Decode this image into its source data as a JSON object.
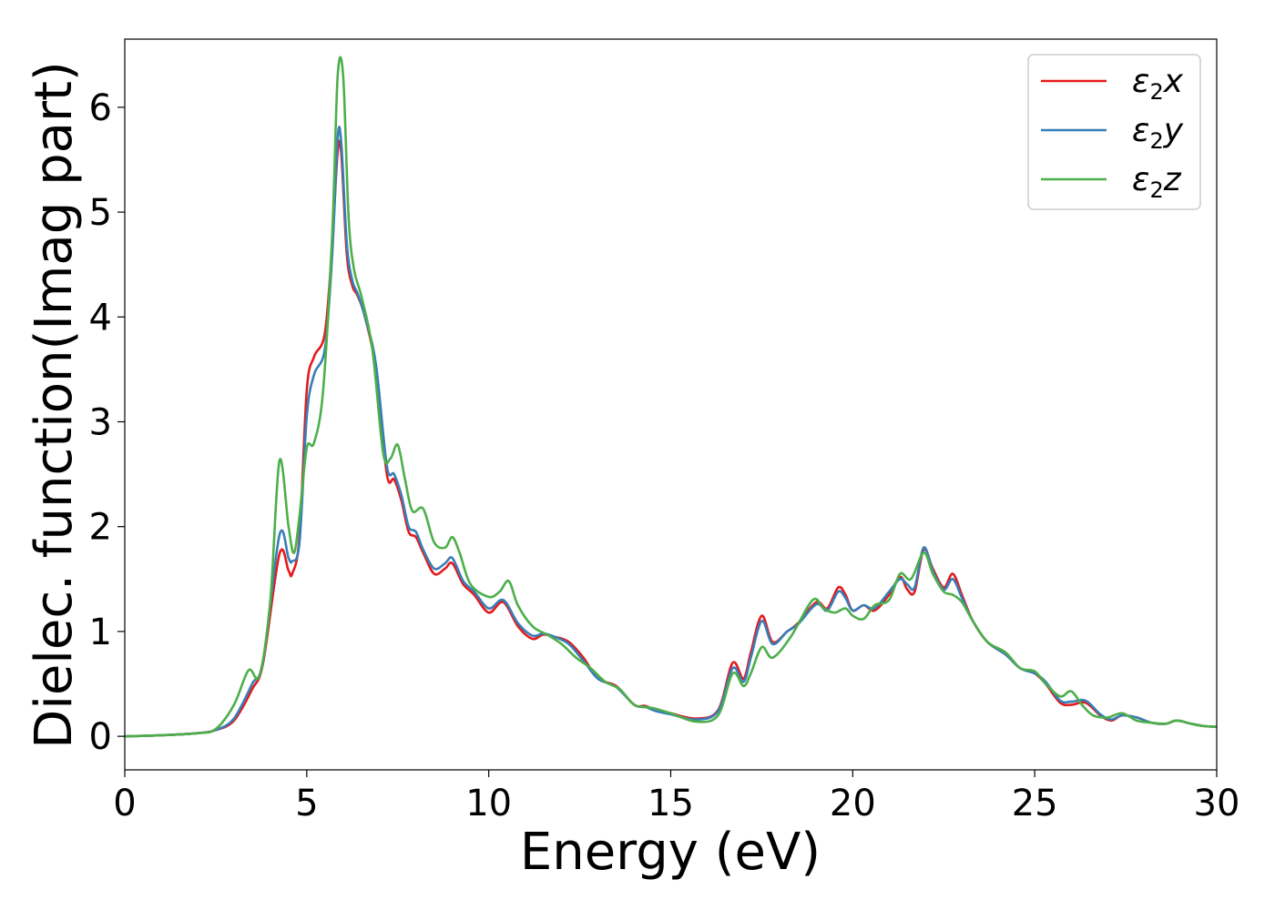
{
  "chart_data": {
    "type": "line",
    "xlabel": "Energy (eV)",
    "ylabel": "Dielec. function(Imag part)",
    "xlim": [
      0,
      30
    ],
    "ylim": [
      -0.32,
      6.65
    ],
    "xticks": [
      0,
      5,
      10,
      15,
      20,
      25,
      30
    ],
    "yticks": [
      0,
      1,
      2,
      3,
      4,
      5,
      6
    ],
    "grid": false,
    "legend_position": "top-right",
    "series": [
      {
        "name": "ε2x",
        "legend": {
          "symbol": "ε",
          "sub": "2",
          "axis": "x"
        },
        "color": "#e41a1c",
        "x": [
          0,
          1,
          2,
          2.5,
          3,
          3.5,
          3.8,
          4.25,
          4.5,
          4.6,
          4.8,
          5.0,
          5.2,
          5.5,
          5.7,
          5.85,
          5.95,
          6.1,
          6.25,
          6.4,
          6.6,
          6.9,
          7.2,
          7.4,
          7.6,
          7.8,
          8.0,
          8.2,
          8.5,
          8.8,
          9.0,
          9.3,
          9.6,
          10.0,
          10.4,
          10.8,
          11.2,
          11.5,
          11.8,
          12.2,
          12.6,
          13.0,
          13.5,
          14.0,
          14.3,
          14.6,
          15.0,
          15.7,
          16.3,
          16.7,
          17.0,
          17.2,
          17.5,
          17.8,
          18.2,
          18.5,
          19.0,
          19.3,
          19.6,
          19.8,
          20.0,
          20.3,
          20.6,
          21.0,
          21.3,
          21.5,
          21.7,
          21.95,
          22.2,
          22.5,
          22.75,
          23.0,
          23.3,
          23.7,
          24.2,
          24.6,
          25.0,
          25.3,
          25.7,
          26.0,
          26.4,
          26.8,
          27.1,
          27.4,
          27.8,
          28.2,
          28.6,
          28.9,
          29.3,
          29.6,
          30.0
        ],
        "y": [
          0.0,
          0.01,
          0.03,
          0.06,
          0.15,
          0.45,
          0.7,
          1.74,
          1.58,
          1.55,
          1.9,
          3.3,
          3.62,
          3.85,
          4.7,
          5.58,
          5.55,
          4.6,
          4.3,
          4.2,
          4.0,
          3.5,
          2.5,
          2.45,
          2.25,
          1.95,
          1.9,
          1.75,
          1.55,
          1.6,
          1.65,
          1.45,
          1.35,
          1.18,
          1.28,
          1.05,
          0.93,
          0.97,
          0.95,
          0.9,
          0.75,
          0.55,
          0.48,
          0.3,
          0.29,
          0.25,
          0.22,
          0.17,
          0.25,
          0.7,
          0.55,
          0.8,
          1.15,
          0.9,
          1.0,
          1.08,
          1.28,
          1.22,
          1.42,
          1.35,
          1.2,
          1.25,
          1.2,
          1.35,
          1.52,
          1.4,
          1.38,
          1.78,
          1.6,
          1.42,
          1.55,
          1.35,
          1.1,
          0.9,
          0.78,
          0.65,
          0.6,
          0.5,
          0.32,
          0.3,
          0.32,
          0.2,
          0.15,
          0.2,
          0.18,
          0.13,
          0.12,
          0.15,
          0.12,
          0.1,
          0.09
        ]
      },
      {
        "name": "ε2y",
        "legend": {
          "symbol": "ε",
          "sub": "2",
          "axis": "y"
        },
        "color": "#377eb8",
        "x": [
          0,
          1,
          2,
          2.5,
          3,
          3.5,
          3.8,
          4.25,
          4.5,
          4.6,
          4.8,
          5.0,
          5.2,
          5.5,
          5.7,
          5.85,
          5.95,
          6.1,
          6.25,
          6.4,
          6.6,
          6.9,
          7.2,
          7.4,
          7.6,
          7.8,
          8.0,
          8.2,
          8.5,
          8.8,
          9.0,
          9.3,
          9.6,
          10.0,
          10.4,
          10.8,
          11.2,
          11.5,
          11.8,
          12.2,
          12.6,
          13.0,
          13.5,
          14.0,
          14.3,
          14.6,
          15.0,
          15.7,
          16.3,
          16.7,
          17.0,
          17.2,
          17.5,
          17.8,
          18.2,
          18.5,
          19.0,
          19.3,
          19.6,
          19.8,
          20.0,
          20.3,
          20.6,
          21.0,
          21.3,
          21.5,
          21.7,
          21.95,
          22.2,
          22.5,
          22.75,
          23.0,
          23.3,
          23.7,
          24.2,
          24.6,
          25.0,
          25.3,
          25.7,
          26.0,
          26.4,
          26.8,
          27.1,
          27.4,
          27.8,
          28.2,
          28.6,
          28.9,
          29.3,
          29.6,
          30.0
        ],
        "y": [
          0.0,
          0.01,
          0.03,
          0.06,
          0.17,
          0.5,
          0.72,
          1.92,
          1.7,
          1.67,
          1.85,
          3.05,
          3.45,
          3.7,
          4.6,
          5.71,
          5.65,
          4.7,
          4.35,
          4.22,
          4.0,
          3.55,
          2.58,
          2.5,
          2.3,
          2.0,
          1.95,
          1.78,
          1.6,
          1.65,
          1.7,
          1.48,
          1.38,
          1.22,
          1.3,
          1.08,
          0.96,
          0.98,
          0.95,
          0.88,
          0.72,
          0.55,
          0.47,
          0.3,
          0.28,
          0.24,
          0.21,
          0.16,
          0.24,
          0.65,
          0.52,
          0.75,
          1.1,
          0.88,
          1.0,
          1.07,
          1.26,
          1.2,
          1.38,
          1.32,
          1.2,
          1.25,
          1.22,
          1.38,
          1.5,
          1.45,
          1.42,
          1.8,
          1.58,
          1.4,
          1.5,
          1.32,
          1.1,
          0.9,
          0.78,
          0.65,
          0.6,
          0.52,
          0.34,
          0.33,
          0.34,
          0.21,
          0.16,
          0.2,
          0.18,
          0.13,
          0.12,
          0.15,
          0.12,
          0.1,
          0.09
        ]
      },
      {
        "name": "ε2z",
        "legend": {
          "symbol": "ε",
          "sub": "2",
          "axis": "z"
        },
        "color": "#4daf4a",
        "x": [
          0,
          1,
          2,
          2.5,
          3,
          3.4,
          3.7,
          4.0,
          4.25,
          4.5,
          4.65,
          4.8,
          5.0,
          5.2,
          5.45,
          5.7,
          5.85,
          6.0,
          6.15,
          6.3,
          6.5,
          6.8,
          7.1,
          7.3,
          7.5,
          7.7,
          7.9,
          8.2,
          8.5,
          8.8,
          9.0,
          9.2,
          9.5,
          10.0,
          10.3,
          10.55,
          10.8,
          11.2,
          11.6,
          12.0,
          12.4,
          12.8,
          13.2,
          13.6,
          14.0,
          14.5,
          15.0,
          15.7,
          16.3,
          16.7,
          17.0,
          17.2,
          17.5,
          17.8,
          18.3,
          18.9,
          19.2,
          19.5,
          19.8,
          20.0,
          20.3,
          20.6,
          21.0,
          21.3,
          21.6,
          21.95,
          22.2,
          22.5,
          22.75,
          23.0,
          23.3,
          23.7,
          24.2,
          24.6,
          25.0,
          25.3,
          25.7,
          26.0,
          26.3,
          26.6,
          27.0,
          27.4,
          27.8,
          28.2,
          28.6,
          28.9,
          29.3,
          29.6,
          30.0
        ],
        "y": [
          0.0,
          0.01,
          0.03,
          0.07,
          0.3,
          0.63,
          0.58,
          1.3,
          2.63,
          2.0,
          1.75,
          2.1,
          2.75,
          2.8,
          3.3,
          4.8,
          6.3,
          6.3,
          4.95,
          4.45,
          4.2,
          3.7,
          2.7,
          2.65,
          2.78,
          2.45,
          2.15,
          2.17,
          1.85,
          1.8,
          1.9,
          1.75,
          1.45,
          1.33,
          1.38,
          1.48,
          1.25,
          1.05,
          0.97,
          0.88,
          0.75,
          0.65,
          0.52,
          0.45,
          0.3,
          0.27,
          0.22,
          0.14,
          0.2,
          0.6,
          0.48,
          0.6,
          0.85,
          0.75,
          0.95,
          1.3,
          1.22,
          1.18,
          1.22,
          1.15,
          1.12,
          1.25,
          1.3,
          1.55,
          1.5,
          1.75,
          1.55,
          1.38,
          1.35,
          1.28,
          1.1,
          0.9,
          0.8,
          0.65,
          0.62,
          0.5,
          0.38,
          0.43,
          0.3,
          0.2,
          0.18,
          0.22,
          0.15,
          0.13,
          0.12,
          0.15,
          0.12,
          0.1,
          0.09
        ]
      }
    ]
  }
}
